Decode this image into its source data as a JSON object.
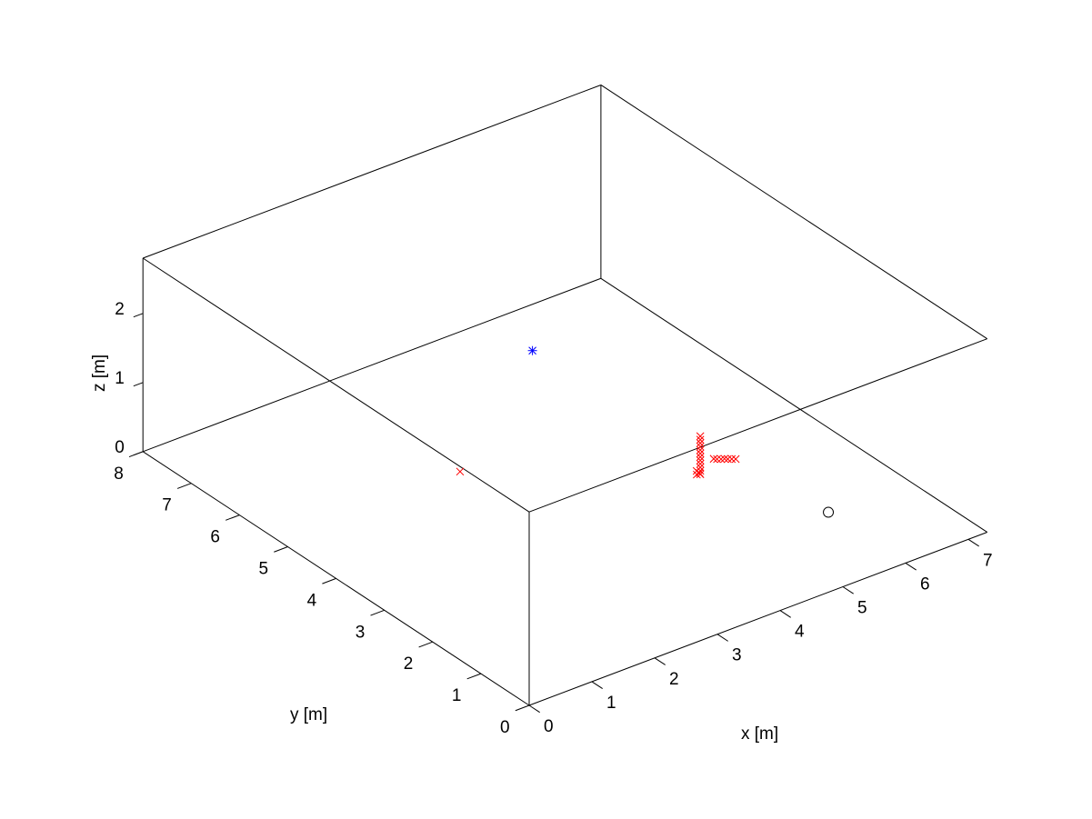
{
  "chart_data": {
    "type": "scatter3d",
    "title": "",
    "xlabel": "x [m]",
    "ylabel": "y [m]",
    "zlabel": "z [m]",
    "xlim": [
      0,
      7.3
    ],
    "ylim": [
      0,
      8
    ],
    "zlim": [
      0,
      2.8
    ],
    "xticks": [
      "0",
      "1",
      "2",
      "3",
      "4",
      "5",
      "6",
      "7"
    ],
    "yticks": [
      "0",
      "1",
      "2",
      "3",
      "4",
      "5",
      "6",
      "7",
      "8"
    ],
    "zticks": [
      "0",
      "1",
      "2"
    ],
    "grid": false,
    "box": true,
    "series": [
      {
        "marker": "star",
        "color": "#0000ff",
        "points": [
          [
            3.9,
            5.0,
            1.5
          ]
        ]
      },
      {
        "marker": "circle",
        "color": "#000000",
        "points": [
          [
            6.0,
            1.6,
            0.0
          ]
        ]
      },
      {
        "marker": "x",
        "color": "#ff0000",
        "points": [
          [
            2.9,
            5.2,
            0.0
          ],
          [
            5.29,
            3.33,
            0.0
          ],
          [
            5.29,
            3.33,
            0.05
          ],
          [
            5.29,
            3.33,
            0.1
          ],
          [
            5.29,
            3.33,
            0.15
          ],
          [
            5.29,
            3.33,
            0.2
          ],
          [
            5.29,
            3.33,
            0.25
          ],
          [
            5.29,
            3.33,
            0.3
          ],
          [
            5.29,
            3.33,
            0.35
          ],
          [
            5.29,
            3.33,
            0.4
          ],
          [
            5.29,
            3.33,
            0.45
          ],
          [
            5.29,
            3.33,
            0.5
          ],
          [
            5.29,
            3.33,
            0.55
          ],
          [
            5.25,
            3.35,
            0.0
          ],
          [
            5.27,
            3.32,
            0.03
          ],
          [
            5.24,
            3.34,
            0.06
          ],
          [
            5.45,
            3.26,
            0.2
          ],
          [
            5.48,
            3.23,
            0.2
          ],
          [
            5.52,
            3.2,
            0.2
          ],
          [
            5.56,
            3.18,
            0.2
          ],
          [
            5.59,
            3.15,
            0.2
          ],
          [
            5.63,
            3.12,
            0.2
          ],
          [
            5.67,
            3.09,
            0.2
          ]
        ]
      }
    ]
  }
}
